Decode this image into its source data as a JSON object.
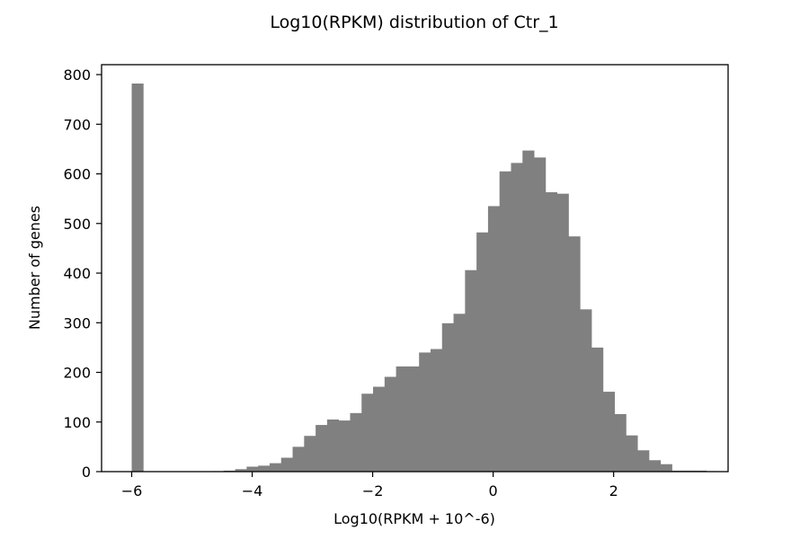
{
  "chart_data": {
    "type": "bar",
    "title": "Log10(RPKM) distribution of Ctr_1",
    "xlabel": "Log10(RPKM + 10^-6)",
    "ylabel": "Number of genes",
    "xlim": [
      -6.5,
      3.9
    ],
    "ylim": [
      0,
      820
    ],
    "x_ticks": [
      -6,
      -4,
      -2,
      0,
      2
    ],
    "x_tick_labels": [
      "−6",
      "−4",
      "−2",
      "0",
      "2"
    ],
    "y_ticks": [
      0,
      100,
      200,
      300,
      400,
      500,
      600,
      700,
      800
    ],
    "y_tick_labels": [
      "0",
      "100",
      "200",
      "300",
      "400",
      "500",
      "600",
      "700",
      "800"
    ],
    "bin_start": -6.0,
    "bin_width": 0.1908,
    "values": [
      782,
      0,
      0,
      0,
      0,
      0,
      0,
      1,
      2,
      5,
      10,
      12,
      17,
      28,
      50,
      72,
      94,
      105,
      103,
      118,
      157,
      171,
      191,
      212,
      212,
      240,
      247,
      299,
      318,
      406,
      482,
      535,
      605,
      622,
      647,
      633,
      563,
      560,
      474,
      327,
      250,
      161,
      116,
      73,
      43,
      23,
      15,
      2,
      2,
      2,
      1
    ],
    "bar_color": "#808080",
    "grid": false,
    "legend": "none"
  }
}
